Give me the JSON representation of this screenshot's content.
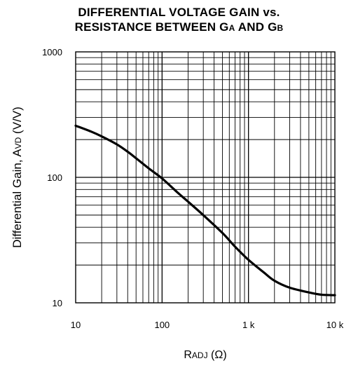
{
  "chart_data": {
    "type": "line",
    "title_line1_main": "DIFFERENTIAL VOLTAGE GAIN vs.",
    "title_line2_main": "RESISTANCE BETWEEN G",
    "title_line2_sub1": "A",
    "title_line2_and": " AND G",
    "title_line2_sub2": "B",
    "xlabel_main": "R",
    "xlabel_sub": "ADJ",
    "xlabel_unit": " (Ω)",
    "ylabel_main": "Differential Gain, A",
    "ylabel_sub": "VD",
    "ylabel_unit": " (V/V)",
    "x_scale": "log",
    "y_scale": "log",
    "xlim": [
      10,
      10000
    ],
    "ylim": [
      10,
      1000
    ],
    "grid": true,
    "x_tick_labels": [
      "10",
      "100",
      "1 k",
      "10 k"
    ],
    "x_tick_values": [
      10,
      100,
      1000,
      10000
    ],
    "y_tick_labels": [
      "10",
      "100",
      "1000"
    ],
    "y_tick_values": [
      10,
      100,
      1000
    ],
    "series": [
      {
        "x": [
          10,
          15,
          20,
          30,
          40,
          50,
          70,
          100,
          150,
          200,
          300,
          500,
          700,
          1000,
          1500,
          2000,
          3000,
          5000,
          7000,
          10000
        ],
        "y": [
          258,
          232,
          212,
          183,
          160,
          142,
          118,
          98,
          76,
          64,
          50,
          36,
          28,
          22,
          17.5,
          15,
          13.2,
          12.1,
          11.6,
          11.5
        ]
      }
    ]
  }
}
